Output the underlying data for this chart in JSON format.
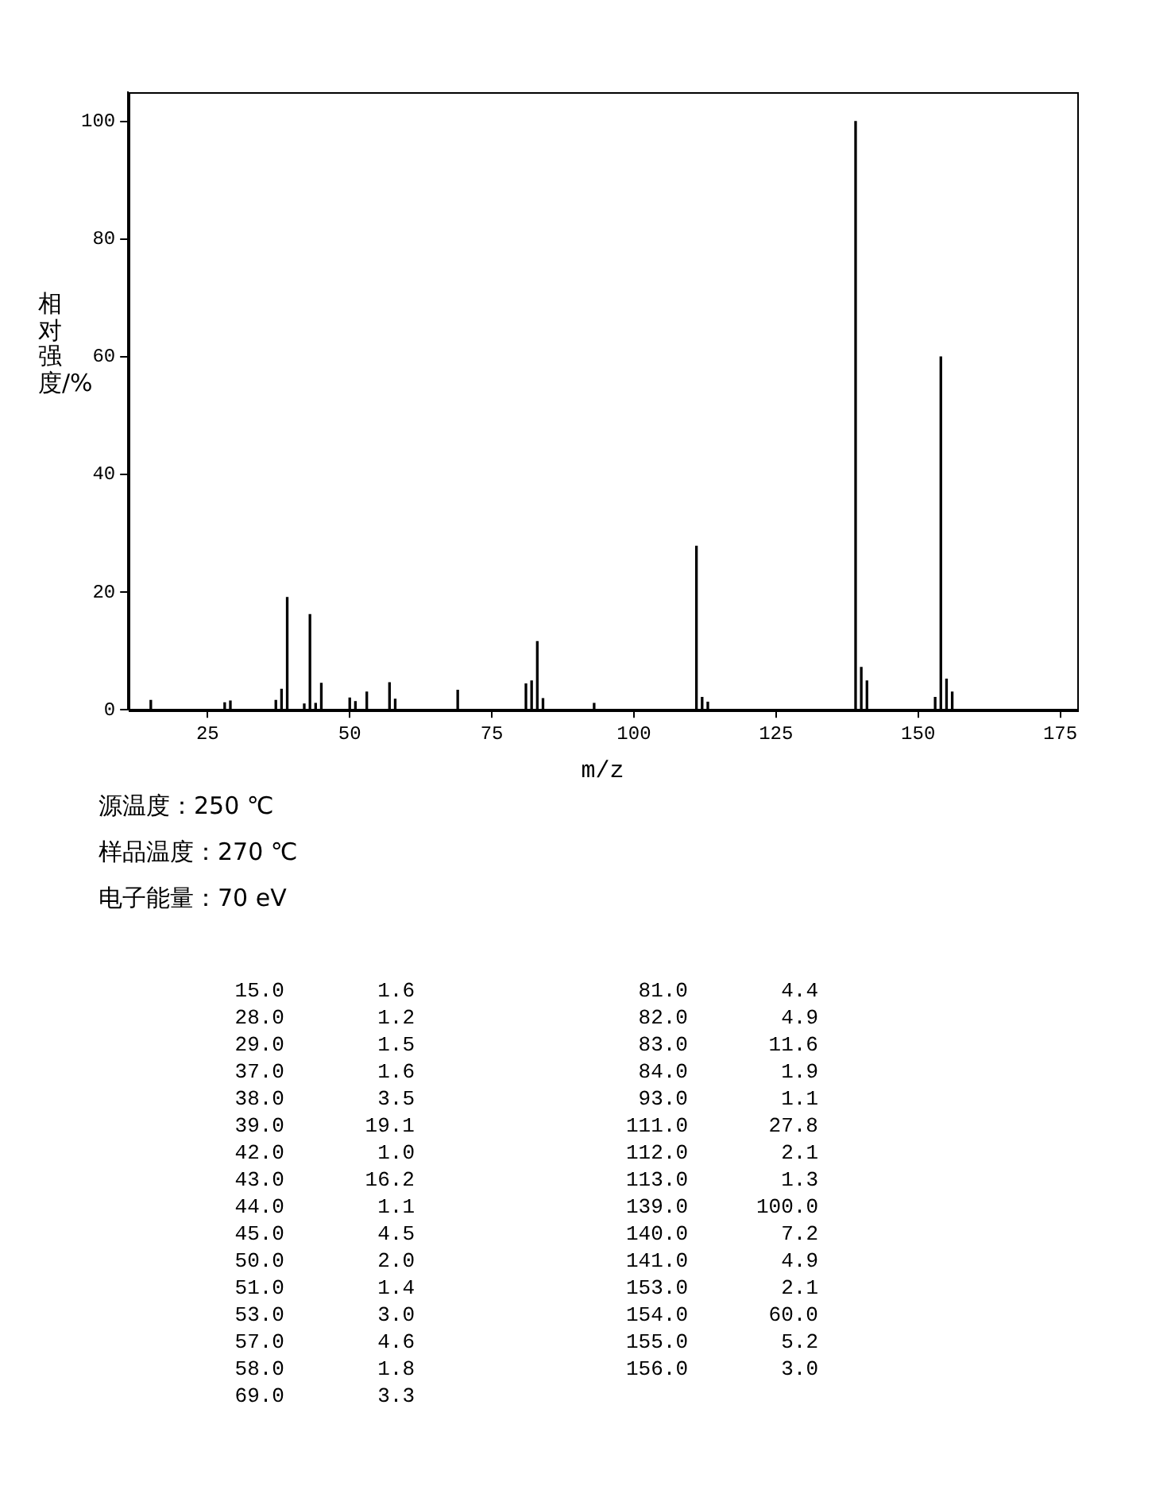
{
  "chart_data": [
    {
      "type": "bar",
      "xlabel": "m/z",
      "ylabel": "相对强度/%",
      "x": [
        15,
        28,
        29,
        37,
        38,
        39,
        42,
        43,
        44,
        45,
        50,
        51,
        53,
        57,
        58,
        69,
        81,
        82,
        83,
        84,
        93,
        111,
        112,
        113,
        139,
        140,
        141,
        153,
        154,
        155,
        156
      ],
      "values": [
        1.6,
        1.2,
        1.5,
        1.6,
        3.5,
        19.1,
        1.0,
        16.2,
        1.1,
        4.5,
        2.0,
        1.4,
        3.0,
        4.6,
        1.8,
        3.3,
        4.4,
        4.9,
        11.6,
        1.9,
        1.1,
        27.8,
        2.1,
        1.3,
        100.0,
        7.2,
        4.9,
        2.1,
        60.0,
        5.2,
        3.0
      ],
      "color": "#000000",
      "xlim": [
        11,
        178
      ],
      "xticks": [
        25,
        50,
        75,
        100,
        125,
        150,
        175
      ],
      "ylim": [
        0,
        105
      ],
      "yticks": [
        0,
        20,
        40,
        60,
        80,
        100
      ],
      "annotations": [
        "源温度：250 ℃",
        "样品温度：270 ℃",
        "电子能量：70 eV"
      ]
    },
    {
      "type": "other",
      "categories": [
        "15.0",
        "28.0",
        "29.0",
        "37.0",
        "38.0",
        "39.0",
        "42.0",
        "43.0",
        "44.0",
        "45.0",
        "50.0",
        "51.0",
        "53.0",
        "57.0",
        "58.0",
        "69.0",
        "81.0",
        "82.0",
        "83.0",
        "84.0",
        "93.0",
        "111.0",
        "112.0",
        "113.0",
        "139.0",
        "140.0",
        "141.0",
        "153.0",
        "154.0",
        "155.0",
        "156.0"
      ],
      "value_labels": [
        "1.6",
        "1.2",
        "1.5",
        "1.6",
        "3.5",
        "19.1",
        "1.0",
        "16.2",
        "1.1",
        "4.5",
        "2.0",
        "1.4",
        "3.0",
        "4.6",
        "1.8",
        "3.3",
        "4.4",
        "4.9",
        "11.6",
        "1.9",
        "1.1",
        "27.8",
        "2.1",
        "1.3",
        "100.0",
        "7.2",
        "4.9",
        "2.1",
        "60.0",
        "5.2",
        "3.0"
      ]
    }
  ]
}
